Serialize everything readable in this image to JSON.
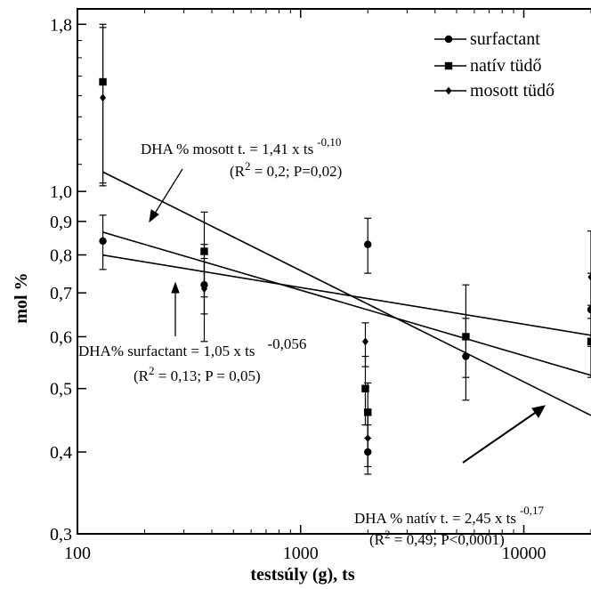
{
  "chart_data": {
    "type": "scatter",
    "xlabel": "testsúly (g), ts",
    "ylabel": "mol %",
    "xscale": "log",
    "yscale": "log",
    "xlim": [
      100,
      20000
    ],
    "ylim": [
      0.3,
      1.9
    ],
    "x_ticks": [
      {
        "value": 100,
        "label": "100"
      },
      {
        "value": 1000,
        "label": "1000"
      },
      {
        "value": 10000,
        "label": "10000"
      }
    ],
    "y_ticks": [
      {
        "value": 0.3,
        "label": "0,3"
      },
      {
        "value": 0.4,
        "label": "0,4"
      },
      {
        "value": 0.5,
        "label": "0,5"
      },
      {
        "value": 0.6,
        "label": "0,6"
      },
      {
        "value": 0.7,
        "label": "0,7"
      },
      {
        "value": 0.8,
        "label": "0,8"
      },
      {
        "value": 0.9,
        "label": "0,9"
      },
      {
        "value": 1.0,
        "label": "1,0"
      },
      {
        "value": 1.8,
        "label": "1,8"
      }
    ],
    "legend_position": "top-right",
    "series": [
      {
        "name": "surfactant",
        "marker": "circle",
        "points": [
          {
            "x": 130,
            "y": 0.84,
            "lo": 0.76,
            "hi": 0.92
          },
          {
            "x": 370,
            "y": 0.72,
            "lo": 0.65,
            "hi": 0.79
          },
          {
            "x": 2000,
            "y": 0.83,
            "lo": 0.75,
            "hi": 0.91
          },
          {
            "x": 2000,
            "y": 0.4,
            "lo": 0.37,
            "hi": 0.44
          },
          {
            "x": 5500,
            "y": 0.56,
            "lo": 0.48,
            "hi": 0.64
          },
          {
            "x": 20000,
            "y": 0.66,
            "lo": 0.58,
            "hi": 0.75
          }
        ]
      },
      {
        "name": "natív tüdő",
        "marker": "square",
        "points": [
          {
            "x": 130,
            "y": 1.47,
            "lo": 1.03,
            "hi": 1.8
          },
          {
            "x": 370,
            "y": 0.81,
            "lo": 0.69,
            "hi": 0.93
          },
          {
            "x": 1950,
            "y": 0.5,
            "lo": 0.44,
            "hi": 0.56
          },
          {
            "x": 2000,
            "y": 0.46,
            "lo": 0.42,
            "hi": 0.51
          },
          {
            "x": 5500,
            "y": 0.6,
            "lo": 0.52,
            "hi": 0.72
          },
          {
            "x": 20000,
            "y": 0.59,
            "lo": 0.52,
            "hi": 0.67
          }
        ]
      },
      {
        "name": "mosott tüdő",
        "marker": "diamond",
        "points": [
          {
            "x": 130,
            "y": 1.39,
            "lo": 1.02,
            "hi": 1.78
          },
          {
            "x": 370,
            "y": 0.71,
            "lo": 0.59,
            "hi": 0.83
          },
          {
            "x": 1950,
            "y": 0.59,
            "lo": 0.54,
            "hi": 0.63
          },
          {
            "x": 2000,
            "y": 0.42,
            "lo": 0.38,
            "hi": 0.46
          },
          {
            "x": 20000,
            "y": 0.74,
            "lo": 0.64,
            "hi": 0.87
          }
        ]
      }
    ],
    "regression_lines": [
      {
        "name": "mosott",
        "a": 1.41,
        "b": -0.1
      },
      {
        "name": "surfactant",
        "a": 1.05,
        "b": -0.056
      },
      {
        "name": "nativ",
        "a": 2.45,
        "b": -0.17
      }
    ],
    "annotations": [
      {
        "key": "mosott",
        "line1": "DHA % mosott t. = 1,41 x ts",
        "line1_sup": "-0,10",
        "line2_pre": "(R",
        "line2_sup": "2",
        "line2_post": " = 0,2; P=0,02)"
      },
      {
        "key": "surfactant",
        "line1": "DHA% surfactant = 1,05 x ts",
        "line1_sup": "-0,056",
        "line2_pre": "(R",
        "line2_sup": "2",
        "line2_post": " = 0,13; P = 0,05)"
      },
      {
        "key": "nativ",
        "line1": "DHA % natív t. = 2,45 x ts",
        "line1_sup": "-0,17",
        "line2_pre": "(R",
        "line2_sup": "2",
        "line2_post": " = 0,49; P<0,0001)"
      }
    ]
  }
}
